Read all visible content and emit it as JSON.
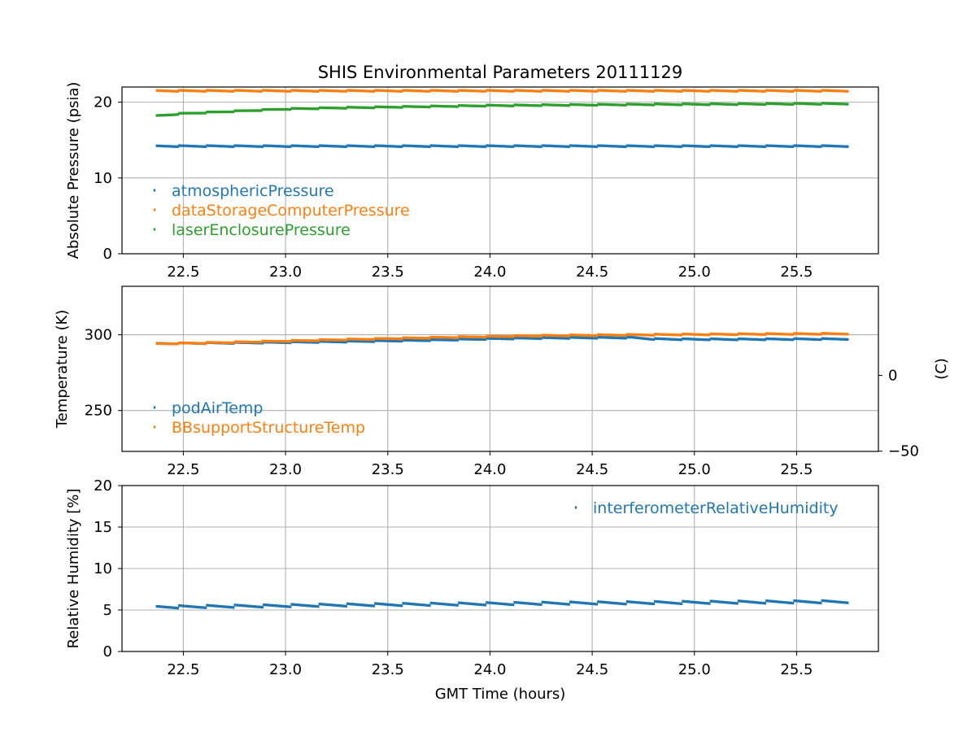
{
  "colors": {
    "blue": "#1f77b4",
    "orange": "#ff7f0e",
    "green": "#2ca02c",
    "grid": "#b0b0b0",
    "axis": "#000000"
  },
  "chart_data": [
    {
      "type": "scatter",
      "title": "SHIS Environmental Parameters 20111129",
      "xlabel": "",
      "ylabel": "Absolute Pressure (psia)",
      "xlim": [
        22.2,
        25.9
      ],
      "ylim": [
        0,
        22
      ],
      "xticks": [
        22.5,
        23.0,
        23.5,
        24.0,
        24.5,
        25.0,
        25.5
      ],
      "xtick_labels": [
        "22.5",
        "23.0",
        "23.5",
        "24.0",
        "24.5",
        "25.0",
        "25.5"
      ],
      "yticks": [
        0,
        10,
        20
      ],
      "ytick_labels": [
        "0",
        "10",
        "20"
      ],
      "grid": true,
      "legend_position": "lower-left",
      "series": [
        {
          "name": "atmosphericPressure",
          "color": "#1f77b4",
          "x": [
            22.37,
            22.75,
            23.25,
            23.75,
            24.25,
            24.75,
            25.25,
            25.75
          ],
          "y": [
            14.2,
            14.2,
            14.2,
            14.2,
            14.2,
            14.2,
            14.2,
            14.2
          ]
        },
        {
          "name": "dataStorageComputerPressure",
          "color": "#ff7f0e",
          "x": [
            22.37,
            22.75,
            23.25,
            23.75,
            24.25,
            24.75,
            25.25,
            25.75
          ],
          "y": [
            21.5,
            21.5,
            21.5,
            21.5,
            21.5,
            21.5,
            21.5,
            21.5
          ]
        },
        {
          "name": "laserEnclosurePressure",
          "color": "#2ca02c",
          "x": [
            22.37,
            22.5,
            22.75,
            23.0,
            23.25,
            23.5,
            23.75,
            24.0,
            24.25,
            24.5,
            24.75,
            25.0,
            25.25,
            25.5,
            25.75
          ],
          "y": [
            18.2,
            18.5,
            18.8,
            19.1,
            19.25,
            19.35,
            19.45,
            19.55,
            19.6,
            19.65,
            19.7,
            19.72,
            19.75,
            19.78,
            19.8
          ]
        }
      ]
    },
    {
      "type": "scatter",
      "title": "",
      "xlabel": "",
      "ylabel": "Temperature (K)",
      "ylabel_right": "(C)",
      "xlim": [
        22.2,
        25.9
      ],
      "ylim": [
        223,
        332
      ],
      "xticks": [
        22.5,
        23.0,
        23.5,
        24.0,
        24.5,
        25.0,
        25.5
      ],
      "xtick_labels": [
        "22.5",
        "23.0",
        "23.5",
        "24.0",
        "24.5",
        "25.0",
        "25.5"
      ],
      "yticks": [
        250,
        300
      ],
      "ytick_labels": [
        "250",
        "300"
      ],
      "yticks_right_celsius": [
        -50,
        0
      ],
      "ytick_labels_right": [
        "−50",
        "0"
      ],
      "grid": true,
      "legend_position": "lower-left",
      "series": [
        {
          "name": "podAirTemp",
          "color": "#1f77b4",
          "x": [
            22.37,
            22.75,
            23.25,
            23.75,
            24.0,
            24.25,
            24.5,
            24.7,
            24.8,
            25.0,
            25.25,
            25.5,
            25.75
          ],
          "y": [
            294.2,
            294.6,
            295.4,
            296.5,
            297.3,
            297.8,
            298.0,
            298.1,
            297.2,
            297.0,
            297.0,
            297.1,
            297.2
          ]
        },
        {
          "name": "BBsupportStructureTemp",
          "color": "#ff7f0e",
          "x": [
            22.37,
            22.75,
            23.25,
            23.75,
            24.25,
            24.75,
            25.25,
            25.75
          ],
          "y": [
            294.0,
            295.0,
            296.7,
            298.2,
            299.4,
            300.0,
            300.4,
            300.7
          ]
        }
      ]
    },
    {
      "type": "scatter",
      "title": "",
      "xlabel": "GMT Time (hours)",
      "ylabel": "Relative Humidity [%]",
      "xlim": [
        22.2,
        25.9
      ],
      "ylim": [
        0,
        20
      ],
      "xticks": [
        22.5,
        23.0,
        23.5,
        24.0,
        24.5,
        25.0,
        25.5
      ],
      "xtick_labels": [
        "22.5",
        "23.0",
        "23.5",
        "24.0",
        "24.5",
        "25.0",
        "25.5"
      ],
      "yticks": [
        0,
        5,
        10,
        15,
        20
      ],
      "ytick_labels": [
        "0",
        "5",
        "10",
        "15",
        "20"
      ],
      "grid": true,
      "legend_position": "upper-right",
      "series": [
        {
          "name": "interferometerRelativeHumidity",
          "color": "#1f77b4",
          "x": [
            22.37,
            22.75,
            23.25,
            23.75,
            24.25,
            24.75,
            25.25,
            25.75
          ],
          "y": [
            5.35,
            5.45,
            5.6,
            5.7,
            5.8,
            5.88,
            5.95,
            6.0
          ]
        }
      ]
    }
  ]
}
